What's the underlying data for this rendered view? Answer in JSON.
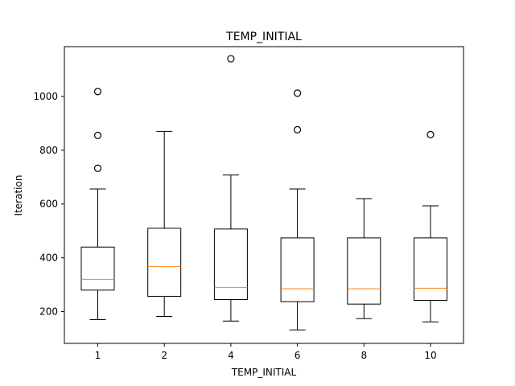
{
  "chart_data": {
    "type": "box",
    "title": "TEMP_INITIAL",
    "xlabel": "TEMP_INITIAL",
    "ylabel": "Iteration",
    "ylim": [
      82,
      1185
    ],
    "yticks": [
      200,
      400,
      600,
      800,
      1000
    ],
    "median_color": "#ff7f0e",
    "categories": [
      "1",
      "2",
      "4",
      "6",
      "8",
      "10"
    ],
    "boxes": [
      {
        "category": "1",
        "whislo": 170,
        "q1": 280,
        "med": 320,
        "q3": 440,
        "whishi": 656,
        "fliers": [
          733,
          855,
          1018
        ]
      },
      {
        "category": "2",
        "whislo": 182,
        "q1": 257,
        "med": 368,
        "q3": 510,
        "whishi": 870,
        "fliers": []
      },
      {
        "category": "4",
        "whislo": 165,
        "q1": 245,
        "med": 290,
        "q3": 507,
        "whishi": 708,
        "fliers": [
          1140
        ]
      },
      {
        "category": "6",
        "whislo": 132,
        "q1": 237,
        "med": 285,
        "q3": 474,
        "whishi": 656,
        "fliers": [
          876,
          1012
        ]
      },
      {
        "category": "8",
        "whislo": 174,
        "q1": 228,
        "med": 285,
        "q3": 474,
        "whishi": 620,
        "fliers": []
      },
      {
        "category": "10",
        "whislo": 162,
        "q1": 242,
        "med": 287,
        "q3": 474,
        "whishi": 593,
        "fliers": [
          858
        ]
      }
    ]
  }
}
